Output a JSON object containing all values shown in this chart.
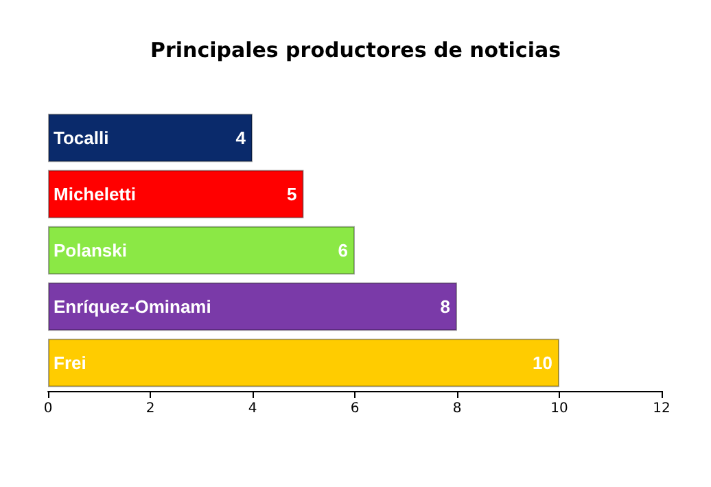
{
  "chart_data": {
    "type": "bar",
    "orientation": "horizontal",
    "title": "Principales productores de noticias",
    "categories": [
      "Tocalli",
      "Micheletti",
      "Polanski",
      "Enríquez-Ominami",
      "Frei"
    ],
    "values": [
      4,
      5,
      6,
      8,
      10
    ],
    "colors": [
      "#0a2a6b",
      "#ff0000",
      "#8be845",
      "#7a3aa8",
      "#ffcc00"
    ],
    "xlim": [
      0,
      12
    ],
    "xticks": [
      0,
      2,
      4,
      6,
      8,
      10,
      12
    ],
    "grid": false,
    "data_labels": true
  }
}
